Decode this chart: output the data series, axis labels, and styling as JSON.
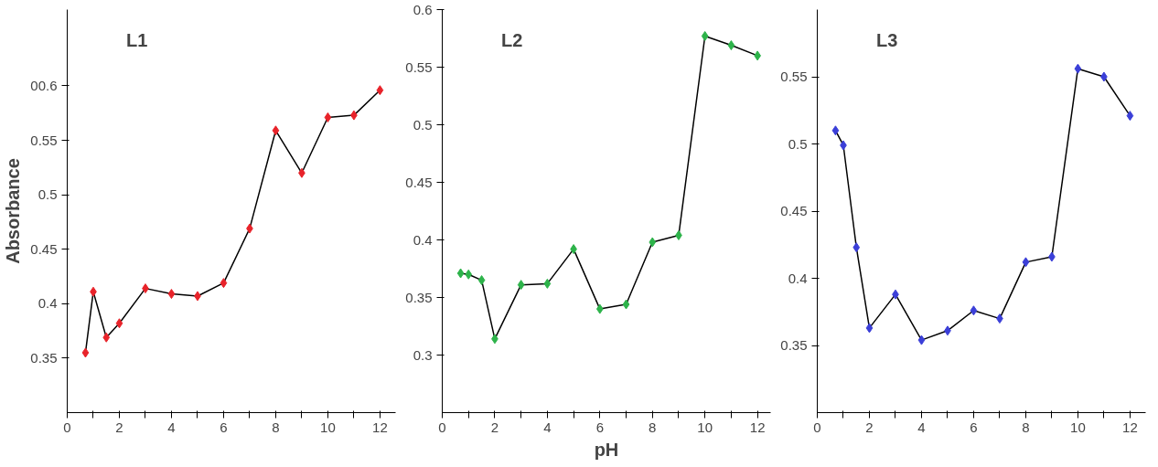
{
  "chart_data": [
    {
      "type": "line",
      "title": "L1",
      "ylabel": "Absorbance",
      "x": [
        0.7,
        1,
        1.5,
        2,
        3,
        4,
        5,
        6,
        7,
        8,
        9,
        10,
        11,
        12
      ],
      "series": [
        {
          "color": "#e8232a",
          "values": [
            0.355,
            0.411,
            0.369,
            0.382,
            0.414,
            0.409,
            0.407,
            0.419,
            0.469,
            0.559,
            0.52,
            0.571,
            0.573,
            0.596
          ]
        }
      ],
      "xlim": [
        0,
        12.6
      ],
      "ylim": [
        0.3,
        0.67
      ],
      "xticks": [
        0,
        {
          "value": 1,
          "label": null
        },
        2,
        {
          "value": 3,
          "label": null
        },
        4,
        {
          "value": 5,
          "label": null
        },
        6,
        {
          "value": 7,
          "label": null
        },
        8,
        {
          "value": 9,
          "label": null
        },
        10,
        {
          "value": 11,
          "label": null
        },
        12
      ],
      "yticks": [
        0.35,
        0.4,
        0.45,
        0.5,
        0.55,
        {
          "value": 0.6,
          "label": "00.6"
        }
      ],
      "marker": "diamond",
      "line_style": "solid"
    },
    {
      "type": "line",
      "title": "L2",
      "xlabel": "pH",
      "x": [
        0.7,
        1,
        1.5,
        2,
        3,
        4,
        5,
        6,
        7,
        8,
        9,
        10,
        11,
        12
      ],
      "series": [
        {
          "color": "#2db34a",
          "values": [
            0.371,
            0.37,
            0.365,
            0.314,
            0.361,
            0.362,
            0.392,
            0.34,
            0.344,
            0.398,
            0.404,
            0.577,
            0.569,
            0.56
          ]
        }
      ],
      "xlim": [
        0,
        12.5
      ],
      "ylim": [
        0.25,
        0.6
      ],
      "xticks": [
        0,
        {
          "value": 1,
          "label": null
        },
        2,
        {
          "value": 3,
          "label": null
        },
        4,
        {
          "value": 5,
          "label": null
        },
        6,
        {
          "value": 7,
          "label": null
        },
        8,
        {
          "value": 9,
          "label": null
        },
        10,
        {
          "value": 11,
          "label": null
        },
        12
      ],
      "yticks": [
        0.3,
        0.35,
        0.4,
        0.45,
        0.5,
        0.55,
        0.6
      ],
      "marker": "diamond",
      "line_style": "solid"
    },
    {
      "type": "line",
      "title": "L3",
      "x": [
        0.7,
        1,
        1.5,
        2,
        3,
        4,
        5,
        6,
        7,
        8,
        9,
        10,
        11,
        12
      ],
      "series": [
        {
          "color": "#3b3fd8",
          "values": [
            0.51,
            0.499,
            0.423,
            0.363,
            0.388,
            0.354,
            0.361,
            0.376,
            0.37,
            0.412,
            0.416,
            0.556,
            0.55,
            0.521
          ]
        }
      ],
      "xlim": [
        0,
        12.6
      ],
      "ylim": [
        0.3,
        0.6
      ],
      "xticks": [
        0,
        {
          "value": 1,
          "label": null
        },
        2,
        {
          "value": 3,
          "label": null
        },
        4,
        {
          "value": 5,
          "label": null
        },
        6,
        {
          "value": 7,
          "label": null
        },
        8,
        {
          "value": 9,
          "label": null
        },
        10,
        {
          "value": 11,
          "label": null
        },
        12
      ],
      "yticks": [
        0.35,
        0.4,
        0.45,
        0.5,
        0.55
      ],
      "marker": "diamond",
      "line_style": "solid"
    }
  ]
}
